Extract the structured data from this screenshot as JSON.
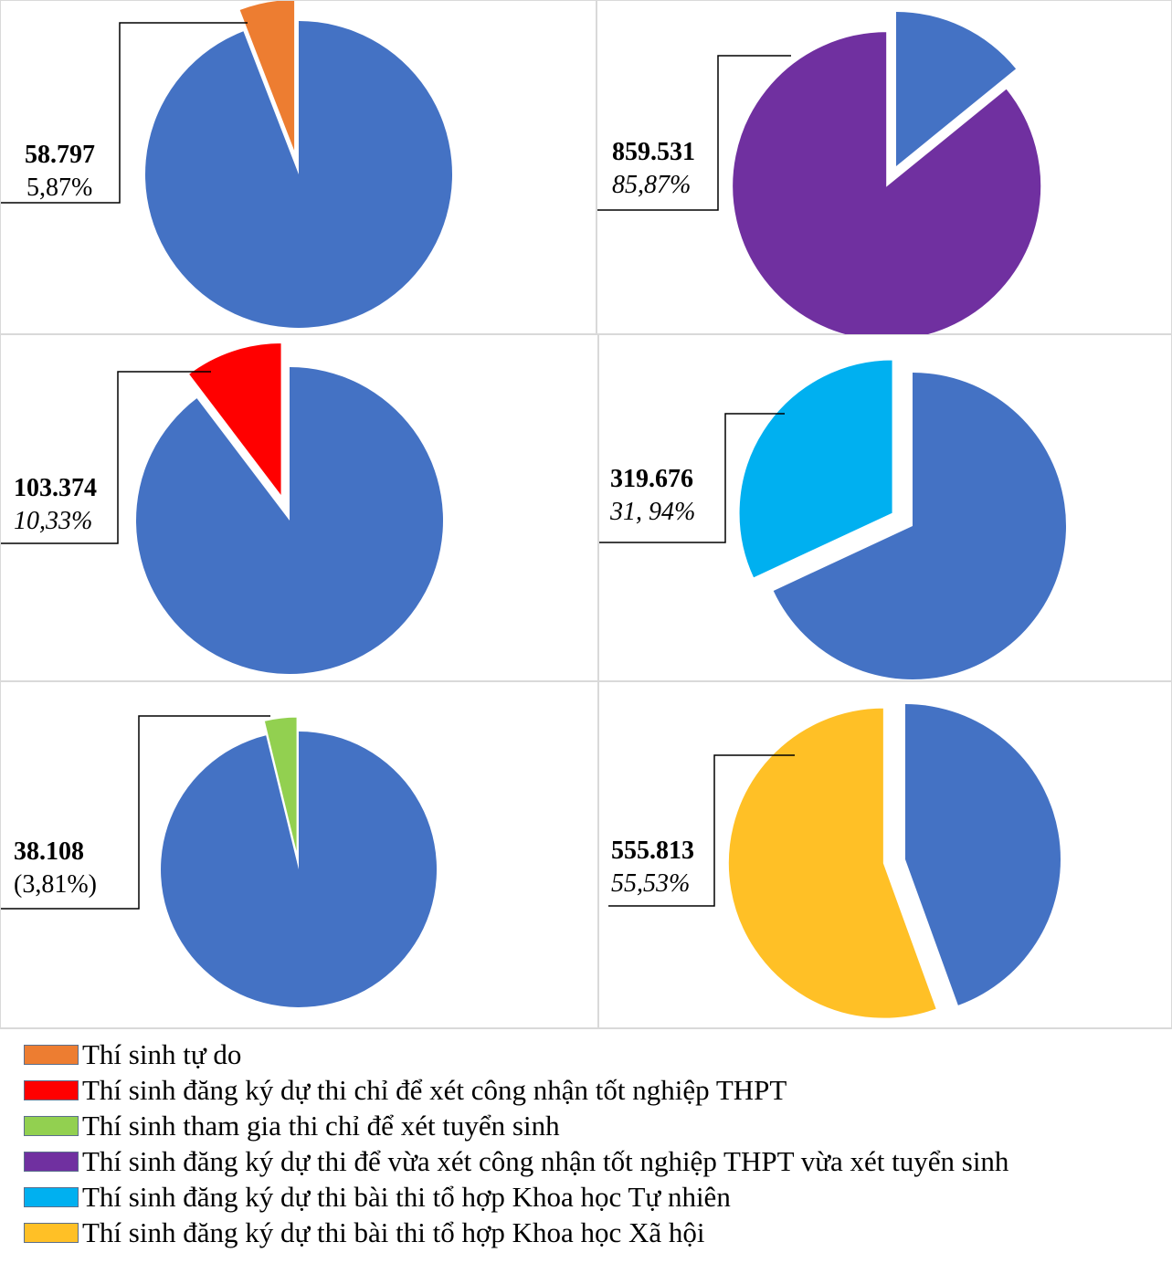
{
  "colors": {
    "base": "#4472C4",
    "orange": "#ED7D31",
    "purple": "#7030A0",
    "red": "#FF0000",
    "cyan": "#00B0F0",
    "green": "#92D050",
    "yellow": "#FFC026"
  },
  "chart_data": [
    {
      "type": "pie",
      "id": "thi-sinh-tu-do",
      "values": [
        5.87,
        94.13
      ],
      "highlight_value": "58.797",
      "highlight_percent": "5,87%",
      "highlight_color": "#ED7D31"
    },
    {
      "type": "pie",
      "id": "vua-tot-nghiep-vua-tuyen-sinh",
      "values": [
        85.87,
        14.13
      ],
      "highlight_value": "859.531",
      "highlight_percent": "85,87%",
      "highlight_color": "#7030A0"
    },
    {
      "type": "pie",
      "id": "chi-tot-nghiep",
      "values": [
        10.33,
        89.67
      ],
      "highlight_value": "103.374",
      "highlight_percent": "10,33%",
      "highlight_color": "#FF0000"
    },
    {
      "type": "pie",
      "id": "khoa-hoc-tu-nhien",
      "values": [
        31.94,
        68.06
      ],
      "highlight_value": "319.676",
      "highlight_percent": "31, 94%",
      "highlight_color": "#00B0F0"
    },
    {
      "type": "pie",
      "id": "chi-tuyen-sinh",
      "values": [
        3.81,
        96.19
      ],
      "highlight_value": "38.108",
      "highlight_percent": "(3,81%)",
      "highlight_color": "#92D050"
    },
    {
      "type": "pie",
      "id": "khoa-hoc-xa-hoi",
      "values": [
        55.53,
        44.47
      ],
      "highlight_value": "555.813",
      "highlight_percent": "55,53%",
      "highlight_color": "#FFC026"
    }
  ],
  "legend": [
    {
      "label": "Thí sinh tự do",
      "color": "#ED7D31"
    },
    {
      "label": "Thí sinh đăng ký dự thi chỉ để xét công nhận tốt nghiệp THPT",
      "color": "#FF0000"
    },
    {
      "label": "Thí sinh tham gia thi chỉ để xét tuyển sinh",
      "color": "#92D050"
    },
    {
      "label": "Thí sinh đăng ký dự thi để vừa xét công nhận tốt nghiệp THPT vừa xét tuyển sinh",
      "color": "#7030A0"
    },
    {
      "label": "Thí sinh đăng ký dự thi bài thi tổ hợp Khoa học Tự nhiên",
      "color": "#00B0F0"
    },
    {
      "label": "Thí sinh đăng ký dự thi bài thi tổ hợp Khoa học Xã hội",
      "color": "#FFC026"
    }
  ]
}
